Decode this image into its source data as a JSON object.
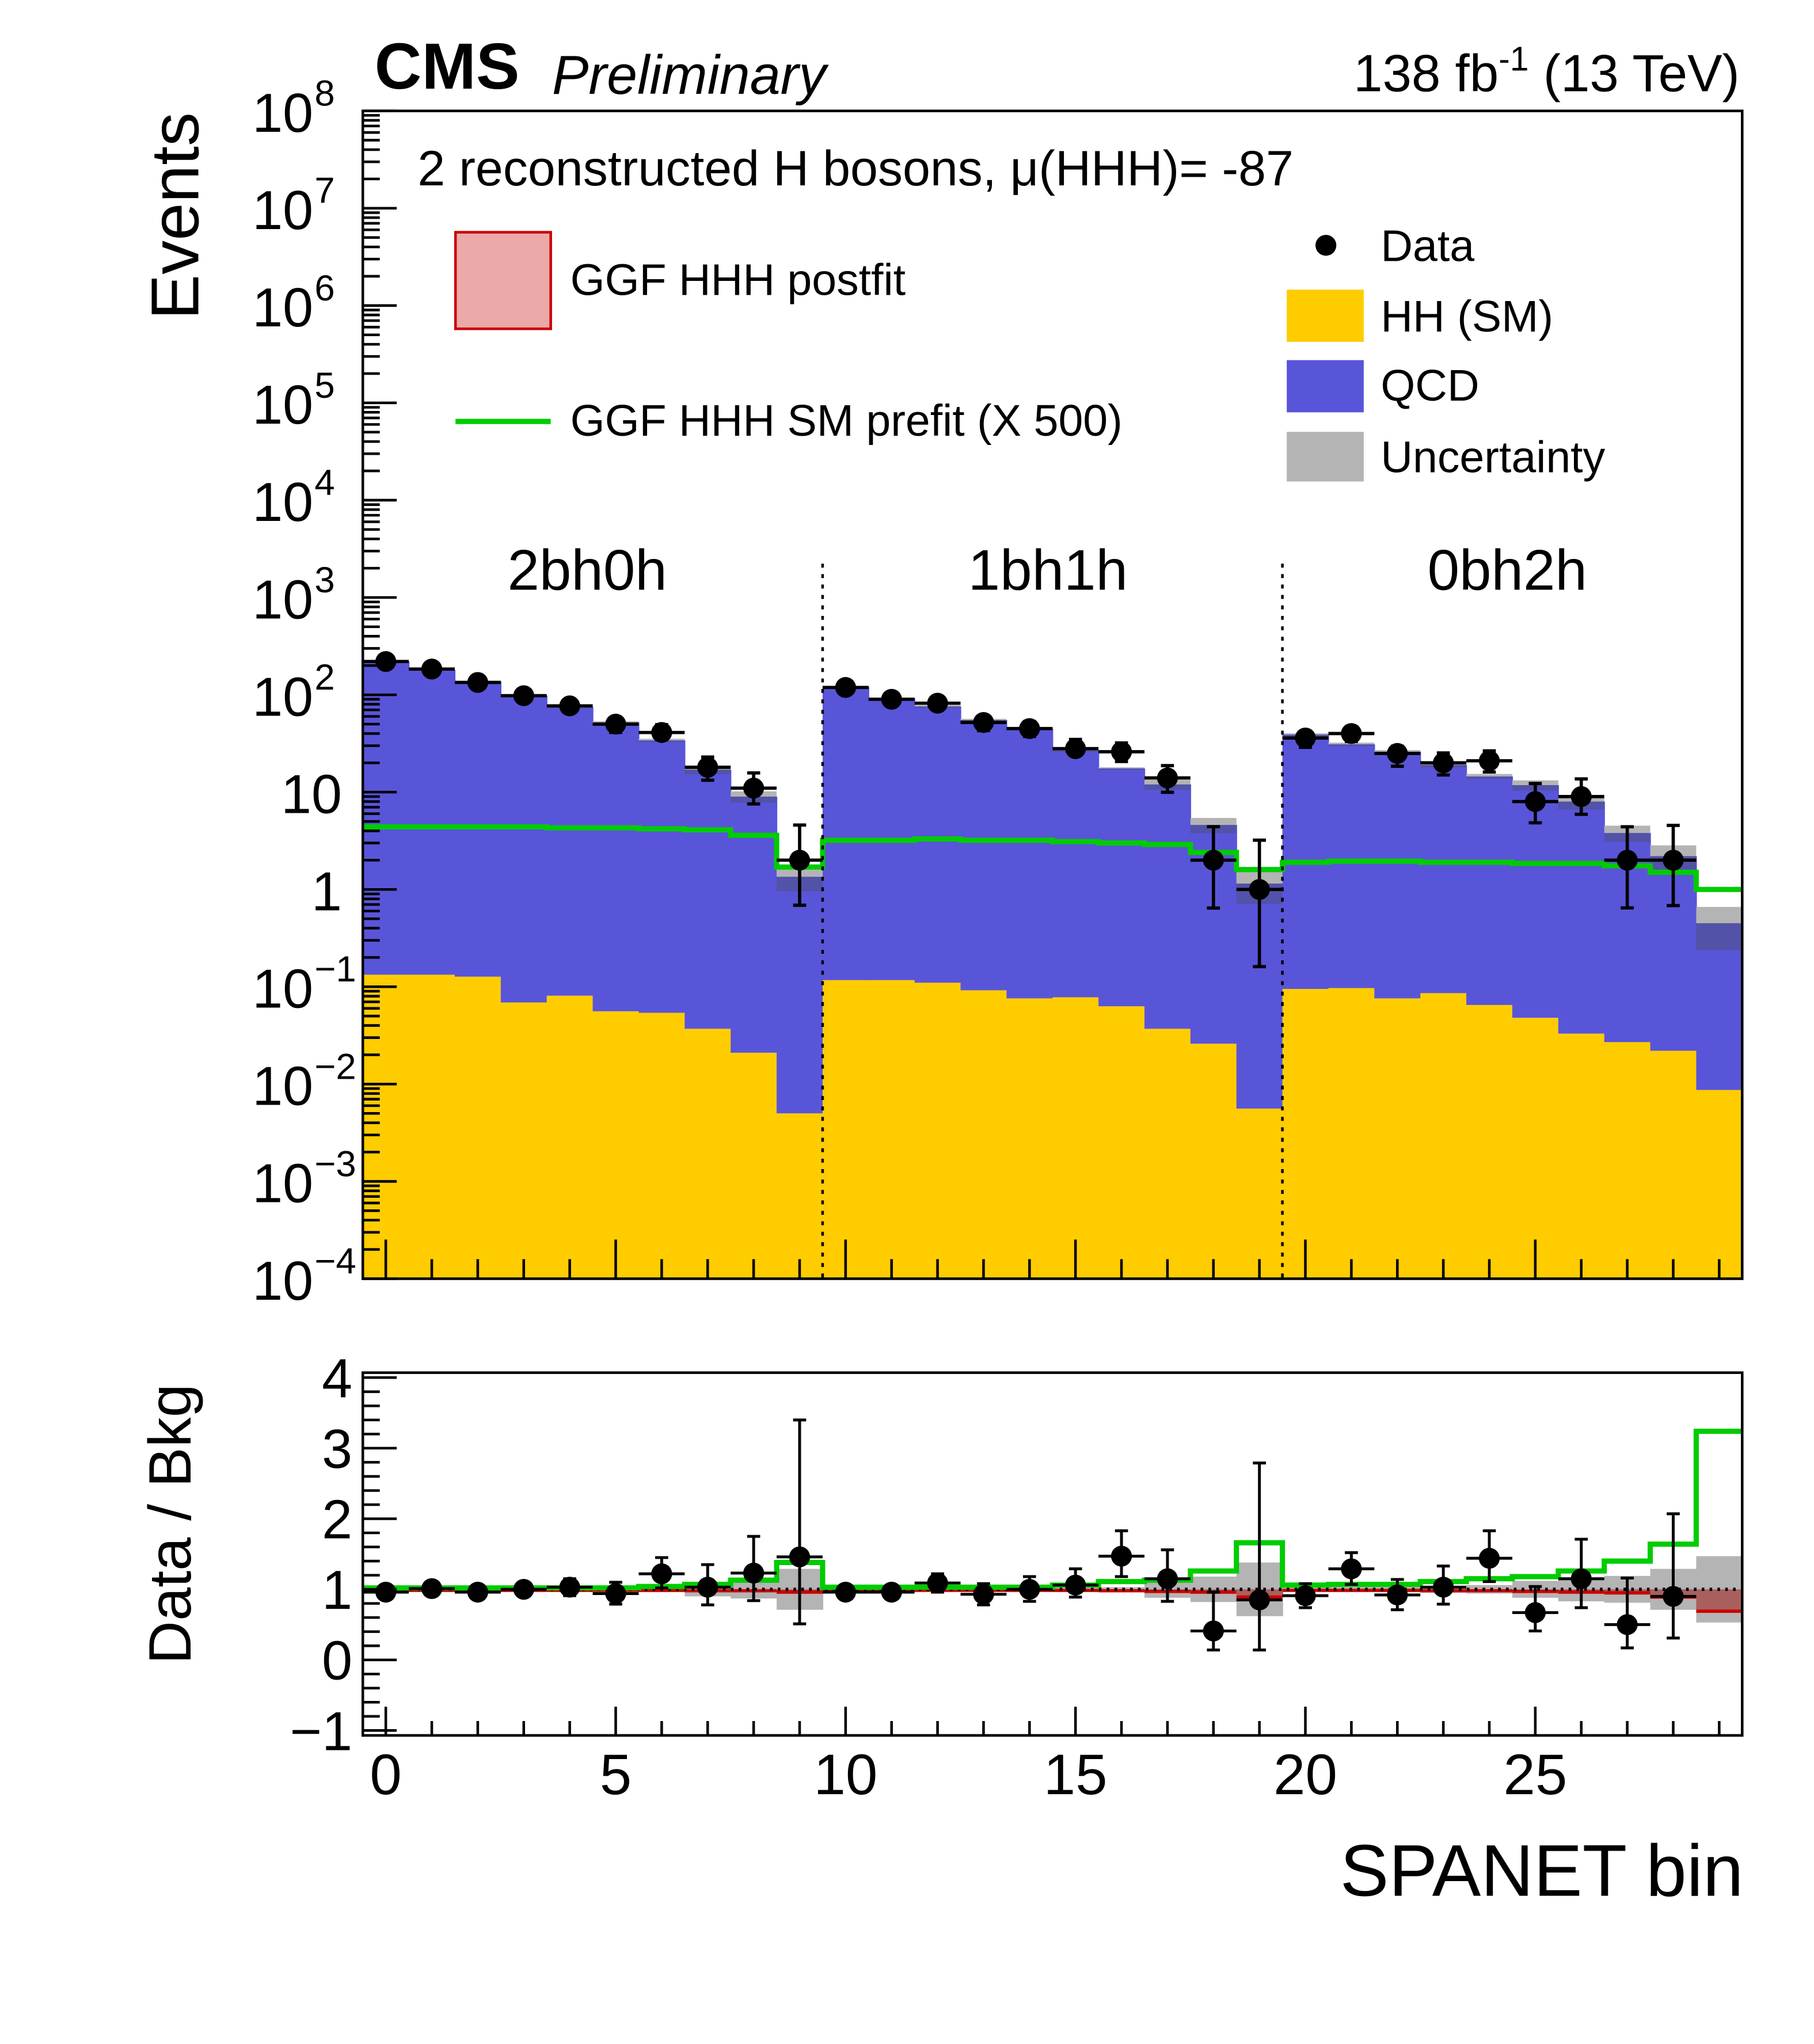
{
  "header": {
    "experiment": "CMS",
    "status": "Preliminary",
    "lumi_base": "138 fb",
    "lumi_exp": "-1",
    "lumi_energy": " (13 TeV)"
  },
  "colors": {
    "hh": "#ffcc00",
    "qcd": "#5955d9",
    "uncertainty": "#b4b4b4",
    "uncertainty_on_stack": "#5252a8",
    "prefit": "#00cc00",
    "postfit_fill": "#eba9a9",
    "postfit_line": "#cc0000",
    "data": "#000000"
  },
  "chart_data": {
    "type": "bar",
    "subtype": "stacked-histogram-with-ratio",
    "title": "2 reconstructed H bosons, μ(HHH)= -87",
    "xlabel": "SPANET bin",
    "ylabel": "Events",
    "ratio_ylabel": "Data / Bkg",
    "yscale": "log",
    "ylim": [
      0.0001,
      100000000
    ],
    "ratio_ylim": [
      -1.07,
      4.07
    ],
    "xlim": [
      -0.5,
      29.5
    ],
    "x_ticks": [
      "0",
      "5",
      "10",
      "15",
      "20",
      "25"
    ],
    "y_ticks": [
      {
        "base": "10",
        "exp": "8"
      },
      {
        "base": "10",
        "exp": "7"
      },
      {
        "base": "10",
        "exp": "6"
      },
      {
        "base": "10",
        "exp": "5"
      },
      {
        "base": "10",
        "exp": "4"
      },
      {
        "base": "10",
        "exp": "3"
      },
      {
        "base": "10",
        "exp": "2"
      },
      {
        "base": "10",
        "exp": ""
      },
      {
        "base": "1",
        "exp": ""
      },
      {
        "base": "10",
        "exp": "−1"
      },
      {
        "base": "10",
        "exp": "−2"
      },
      {
        "base": "10",
        "exp": "−3"
      },
      {
        "base": "10",
        "exp": "−4"
      }
    ],
    "ratio_y_ticks": [
      "4",
      "3",
      "2",
      "1",
      "0",
      "−1"
    ],
    "categories_regions": [
      {
        "label": "2bh0h",
        "bins": [
          0,
          9
        ]
      },
      {
        "label": "1bh1h",
        "bins": [
          10,
          19
        ]
      },
      {
        "label": "0bh2h",
        "bins": [
          20,
          29
        ]
      }
    ],
    "legend": {
      "left": [
        {
          "label": "GGF HHH postfit",
          "kind": "box"
        },
        {
          "label": "GGF HHH SM prefit (X 500)",
          "kind": "line"
        }
      ],
      "right": [
        {
          "label": "Data",
          "kind": "marker"
        },
        {
          "label": "HH (SM)",
          "kind": "box"
        },
        {
          "label": "QCD",
          "kind": "box"
        },
        {
          "label": "Uncertainty",
          "kind": "box"
        }
      ],
      "placement": "top"
    },
    "bins": [
      0,
      1,
      2,
      3,
      4,
      5,
      6,
      7,
      8,
      9,
      10,
      11,
      12,
      13,
      14,
      15,
      16,
      17,
      18,
      19,
      20,
      21,
      22,
      23,
      24,
      25,
      26,
      27,
      28,
      29
    ],
    "data": [
      220,
      184,
      134,
      98,
      77,
      50,
      41,
      18,
      11,
      2,
      119,
      90,
      82,
      52,
      45,
      28,
      26,
      14,
      2,
      1,
      36,
      40,
      25,
      20,
      21,
      8,
      9,
      2,
      2,
      null
    ],
    "total_bkg": [
      220,
      180,
      137,
      98,
      75,
      52,
      34,
      17,
      9,
      1.35,
      121,
      92,
      76,
      55,
      45,
      27,
      17.5,
      12,
      4.6,
      1.15,
      39,
      31,
      26,
      19,
      14.5,
      11.8,
      8,
      3.8,
      2.2,
      0.45
    ],
    "hh_sm": [
      0.133,
      0.133,
      0.127,
      0.069,
      0.081,
      0.056,
      0.054,
      0.037,
      0.021,
      0.005,
      0.117,
      0.117,
      0.11,
      0.092,
      0.076,
      0.078,
      0.063,
      0.037,
      0.026,
      0.0056,
      0.095,
      0.097,
      0.076,
      0.086,
      0.065,
      0.048,
      0.033,
      0.027,
      0.022,
      0.0087
    ],
    "uncertainty_rel": [
      0.02,
      0.02,
      0.02,
      0.02,
      0.03,
      0.03,
      0.04,
      0.1,
      0.13,
      0.29,
      0.02,
      0.02,
      0.03,
      0.03,
      0.03,
      0.04,
      0.03,
      0.12,
      0.18,
      0.38,
      0.03,
      0.04,
      0.04,
      0.05,
      0.06,
      0.12,
      0.17,
      0.19,
      0.29,
      0.47
    ],
    "prefit_x500": [
      4.4,
      4.4,
      4.4,
      4.4,
      4.3,
      4.3,
      4.2,
      4.1,
      3.6,
      1.7,
      3.2,
      3.2,
      3.3,
      3.2,
      3.2,
      3.1,
      3.0,
      2.9,
      2.4,
      1.6,
      1.9,
      1.95,
      1.95,
      1.9,
      1.9,
      1.85,
      1.85,
      1.75,
      1.5,
      1.0
    ],
    "ratio": [
      0.96,
      1.01,
      0.96,
      1.0,
      1.03,
      0.94,
      1.22,
      1.03,
      1.23,
      1.46,
      0.96,
      0.96,
      1.09,
      0.93,
      1.0,
      1.06,
      1.47,
      1.15,
      0.41,
      0.85,
      0.91,
      1.29,
      0.92,
      1.03,
      1.44,
      0.67,
      1.15,
      0.5,
      0.9,
      null
    ],
    "ratio_err_up": [
      1.03,
      1.08,
      1.03,
      1.07,
      1.15,
      1.1,
      1.45,
      1.35,
      1.75,
      3.4,
      1.05,
      1.05,
      1.22,
      1.08,
      1.18,
      1.29,
      1.83,
      1.56,
      0.96,
      2.79,
      1.08,
      1.52,
      1.14,
      1.33,
      1.83,
      1.04,
      1.71,
      1.16,
      2.07,
      null
    ],
    "ratio_err_down": [
      0.89,
      0.94,
      0.89,
      0.93,
      0.91,
      0.79,
      1.02,
      0.78,
      0.84,
      0.51,
      0.87,
      0.87,
      0.96,
      0.78,
      0.83,
      0.89,
      1.18,
      0.83,
      0.14,
      0.14,
      0.74,
      1.07,
      0.71,
      0.79,
      1.11,
      0.41,
      0.74,
      0.17,
      0.31,
      null
    ],
    "ratio_prefit": [
      1.02,
      1.02,
      1.02,
      1.02,
      1.02,
      1.02,
      1.04,
      1.07,
      1.13,
      1.38,
      1.03,
      1.03,
      1.03,
      1.03,
      1.03,
      1.06,
      1.11,
      1.13,
      1.26,
      1.66,
      1.06,
      1.07,
      1.07,
      1.11,
      1.15,
      1.18,
      1.26,
      1.4,
      1.64,
      3.24
    ],
    "ratio_postfit": [
      0.985,
      0.985,
      0.985,
      0.985,
      0.985,
      0.985,
      0.985,
      0.98,
      0.98,
      0.96,
      0.985,
      0.985,
      0.985,
      0.985,
      0.985,
      0.985,
      0.98,
      0.97,
      0.96,
      0.89,
      0.985,
      0.985,
      0.985,
      0.98,
      0.98,
      0.97,
      0.96,
      0.95,
      0.89,
      0.69
    ]
  }
}
